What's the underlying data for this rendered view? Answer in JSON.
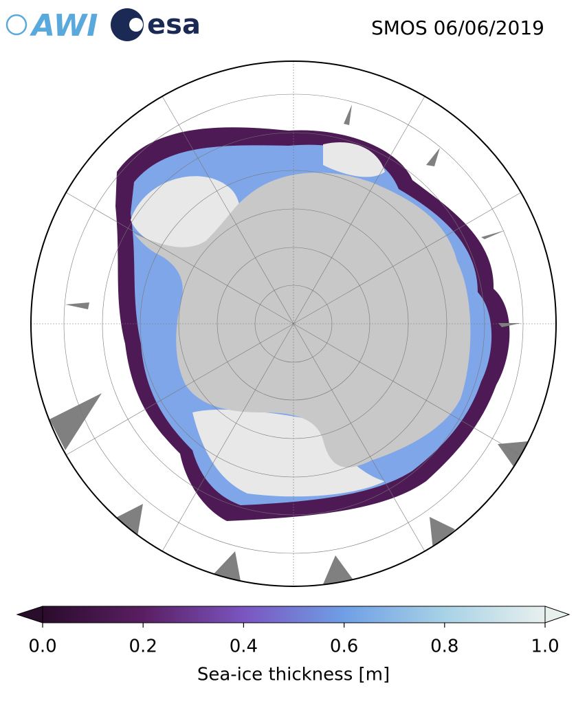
{
  "header": {
    "logos": [
      "AWI",
      "esa"
    ],
    "title": "SMOS 06/06/2019"
  },
  "colorbar": {
    "label": "Sea-ice thickness [m]",
    "lim": [
      0,
      1
    ],
    "extend": "both",
    "colors": [
      "#2a0c2c",
      "#5a1e62",
      "#7a55c0",
      "#6f9fe6",
      "#a8d2e6",
      "#e8f0ee"
    ],
    "ticks": [
      {
        "value": 0,
        "label": "0.0"
      },
      {
        "value": 0.2,
        "label": "0.2"
      },
      {
        "value": 0.4,
        "label": "0.4"
      },
      {
        "value": 0.6,
        "label": "0.6"
      },
      {
        "value": 0.8,
        "label": "0.8"
      },
      {
        "value": 1,
        "label": "1.0"
      }
    ]
  }
}
